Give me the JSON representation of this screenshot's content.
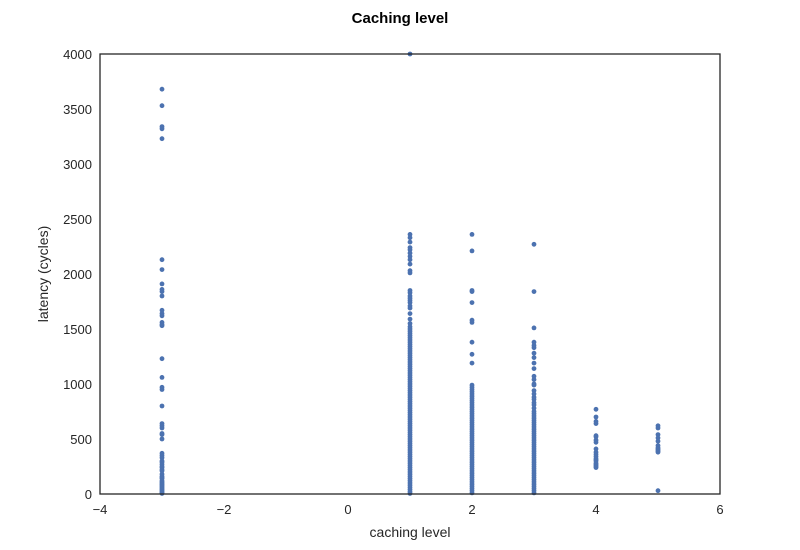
{
  "chart_data": {
    "type": "scatter",
    "title": "Caching level",
    "xlabel": "caching level",
    "ylabel": "latency (cycles)",
    "xlim": [
      -4,
      6
    ],
    "ylim": [
      0,
      4000
    ],
    "xticks": [
      -4,
      -2,
      0,
      2,
      4,
      6
    ],
    "xtick_labels": [
      "−4",
      "−2",
      "0",
      "2",
      "4",
      "6"
    ],
    "yticks": [
      0,
      500,
      1000,
      1500,
      2000,
      2500,
      3000,
      3500,
      4000
    ],
    "ytick_labels": [
      "0",
      "500",
      "1000",
      "1500",
      "2000",
      "2500",
      "3000",
      "3500",
      "4000"
    ],
    "grid": false,
    "marker_color": "#4c72b0",
    "series": [
      {
        "x": -3,
        "y": [
          3680,
          3530,
          3340,
          3320,
          3230,
          2130,
          2040,
          1910,
          1860,
          1840,
          1800,
          1670,
          1640,
          1620,
          1560,
          1540,
          1530,
          1230,
          1060,
          970,
          950,
          800,
          640,
          620,
          600,
          550,
          540,
          500,
          370,
          350,
          330,
          300,
          290,
          270,
          250,
          240,
          220,
          210,
          180,
          160,
          150,
          140,
          120,
          110,
          100,
          90,
          80,
          70,
          60,
          50,
          40,
          30,
          20,
          10,
          5
        ]
      },
      {
        "x": 1,
        "y": [
          4000,
          2360,
          2330,
          2290,
          2240,
          2220,
          2190,
          2160,
          2130,
          2090,
          2030,
          2010,
          1850,
          1830,
          1800,
          1780,
          1760,
          1740,
          1710,
          1690,
          1640,
          1590,
          1550,
          1520,
          1500,
          1480,
          1460,
          1440,
          1420,
          1400,
          1380,
          1360,
          1340,
          1320,
          1300,
          1280,
          1260,
          1240,
          1220,
          1200,
          1180,
          1160,
          1140,
          1120,
          1100,
          1080,
          1060,
          1040,
          1020,
          1000,
          980,
          960,
          940,
          920,
          900,
          880,
          860,
          840,
          820,
          800,
          780,
          760,
          740,
          720,
          700,
          680,
          660,
          640,
          620,
          600,
          580,
          560,
          540,
          520,
          500,
          480,
          460,
          440,
          420,
          400,
          380,
          360,
          340,
          320,
          300,
          280,
          260,
          240,
          220,
          200,
          180,
          160,
          140,
          120,
          100,
          80,
          60,
          40,
          20,
          5
        ]
      },
      {
        "x": 2,
        "y": [
          2360,
          2210,
          1850,
          1840,
          1740,
          1580,
          1560,
          1380,
          1270,
          1190,
          990,
          970,
          950,
          930,
          910,
          890,
          870,
          850,
          830,
          810,
          790,
          770,
          750,
          730,
          710,
          690,
          670,
          650,
          630,
          610,
          590,
          570,
          550,
          530,
          510,
          490,
          470,
          450,
          430,
          410,
          390,
          370,
          350,
          330,
          310,
          290,
          270,
          250,
          230,
          210,
          190,
          170,
          150,
          130,
          110,
          90,
          70,
          50,
          30,
          10
        ]
      },
      {
        "x": 3,
        "y": [
          2270,
          1840,
          1510,
          1380,
          1350,
          1330,
          1280,
          1240,
          1190,
          1140,
          1070,
          1040,
          1000,
          990,
          940,
          910,
          880,
          860,
          830,
          810,
          780,
          750,
          730,
          710,
          690,
          670,
          650,
          630,
          610,
          590,
          570,
          550,
          530,
          510,
          490,
          470,
          450,
          430,
          410,
          390,
          370,
          350,
          330,
          310,
          290,
          270,
          250,
          230,
          210,
          190,
          170,
          150,
          130,
          110,
          90,
          70,
          50,
          30,
          10
        ]
      },
      {
        "x": 4,
        "y": [
          770,
          700,
          660,
          640,
          530,
          520,
          490,
          470,
          410,
          380,
          360,
          340,
          320,
          310,
          300,
          280,
          270,
          260,
          250,
          240
        ]
      },
      {
        "x": 5,
        "y": [
          620,
          600,
          540,
          510,
          480,
          440,
          420,
          410,
          400,
          390,
          380,
          30
        ]
      }
    ]
  }
}
